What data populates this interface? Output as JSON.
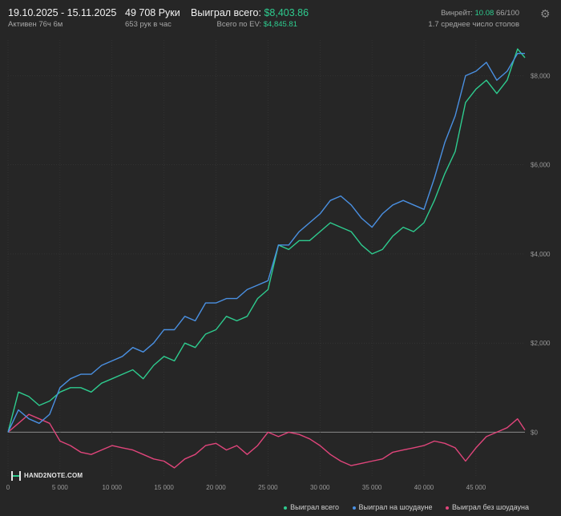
{
  "header": {
    "date_range": "19.10.2025 - 15.11.2025",
    "active": "Активен 76ч 6м",
    "hands": "49 708 Руки",
    "hands_per_hour": "653 рук в час",
    "won_label": "Выиграл всего:",
    "won_value": "$8,403.86",
    "ev_label": "Всего по EV:",
    "ev_value": "$4,845.81",
    "winrate_label": "Винрейт:",
    "winrate_value": "10.08",
    "winrate_suffix": "66/100",
    "tables": "1.7 среднее число столов"
  },
  "logo": {
    "text": "HAND2NOTE.COM"
  },
  "colors": {
    "total": "#2ecc8f",
    "showdown": "#4a90e2",
    "nonshowdown": "#e0457b",
    "background": "#262626"
  },
  "chart_data": {
    "type": "line",
    "x_ticks": [
      "0",
      "5 000",
      "10 000",
      "15 000",
      "20 000",
      "25 000",
      "30 000",
      "35 000",
      "40 000",
      "45 000"
    ],
    "y_ticks": [
      "$0",
      "$2,000",
      "$4,000",
      "$6,000",
      "$8,000"
    ],
    "xlim": [
      0,
      49708
    ],
    "ylim": [
      -1000,
      8800
    ],
    "grid": true,
    "legend_position": "bottom-right",
    "series": [
      {
        "name": "Выиграл всего",
        "color": "#2ecc8f",
        "x": [
          0,
          1000,
          2000,
          3000,
          4000,
          5000,
          6000,
          7000,
          8000,
          9000,
          10000,
          11000,
          12000,
          13000,
          14000,
          15000,
          16000,
          17000,
          18000,
          19000,
          20000,
          21000,
          22000,
          23000,
          24000,
          25000,
          26000,
          27000,
          28000,
          29000,
          30000,
          31000,
          32000,
          33000,
          34000,
          35000,
          36000,
          37000,
          38000,
          39000,
          40000,
          41000,
          42000,
          43000,
          44000,
          45000,
          46000,
          47000,
          48000,
          49000,
          49708
        ],
        "y": [
          0,
          900,
          800,
          600,
          700,
          900,
          1000,
          1000,
          900,
          1100,
          1200,
          1300,
          1400,
          1200,
          1500,
          1700,
          1600,
          2000,
          1900,
          2200,
          2300,
          2600,
          2500,
          2600,
          3000,
          3200,
          4200,
          4100,
          4300,
          4300,
          4500,
          4700,
          4600,
          4500,
          4200,
          4000,
          4100,
          4400,
          4600,
          4500,
          4700,
          5200,
          5800,
          6300,
          7400,
          7700,
          7900,
          7600,
          7900,
          8600,
          8403.86
        ]
      },
      {
        "name": "Выиграл на шоудауне",
        "color": "#4a90e2",
        "x": [
          0,
          1000,
          2000,
          3000,
          4000,
          5000,
          6000,
          7000,
          8000,
          9000,
          10000,
          11000,
          12000,
          13000,
          14000,
          15000,
          16000,
          17000,
          18000,
          19000,
          20000,
          21000,
          22000,
          23000,
          24000,
          25000,
          26000,
          27000,
          28000,
          29000,
          30000,
          31000,
          32000,
          33000,
          34000,
          35000,
          36000,
          37000,
          38000,
          39000,
          40000,
          41000,
          42000,
          43000,
          44000,
          45000,
          46000,
          47000,
          48000,
          49000,
          49708
        ],
        "y": [
          0,
          500,
          300,
          200,
          400,
          1000,
          1200,
          1300,
          1300,
          1500,
          1600,
          1700,
          1900,
          1800,
          2000,
          2300,
          2300,
          2600,
          2500,
          2900,
          2900,
          3000,
          3000,
          3200,
          3300,
          3400,
          4200,
          4200,
          4500,
          4700,
          4900,
          5200,
          5300,
          5100,
          4800,
          4600,
          4900,
          5100,
          5200,
          5100,
          5000,
          5700,
          6500,
          7100,
          8000,
          8100,
          8300,
          7900,
          8100,
          8500,
          8500
        ]
      },
      {
        "name": "Выиграл без шоудауна",
        "color": "#e0457b",
        "x": [
          0,
          1000,
          2000,
          3000,
          4000,
          5000,
          6000,
          7000,
          8000,
          9000,
          10000,
          11000,
          12000,
          13000,
          14000,
          15000,
          16000,
          17000,
          18000,
          19000,
          20000,
          21000,
          22000,
          23000,
          24000,
          25000,
          26000,
          27000,
          28000,
          29000,
          30000,
          31000,
          32000,
          33000,
          34000,
          35000,
          36000,
          37000,
          38000,
          39000,
          40000,
          41000,
          42000,
          43000,
          44000,
          45000,
          46000,
          47000,
          48000,
          49000,
          49708
        ],
        "y": [
          0,
          200,
          400,
          300,
          200,
          -200,
          -300,
          -450,
          -500,
          -400,
          -300,
          -350,
          -400,
          -500,
          -600,
          -650,
          -800,
          -600,
          -500,
          -300,
          -250,
          -400,
          -300,
          -500,
          -300,
          0,
          -100,
          0,
          -50,
          -150,
          -300,
          -500,
          -650,
          -750,
          -700,
          -650,
          -600,
          -450,
          -400,
          -350,
          -300,
          -200,
          -250,
          -350,
          -650,
          -350,
          -100,
          0,
          100,
          300,
          50
        ]
      }
    ]
  }
}
